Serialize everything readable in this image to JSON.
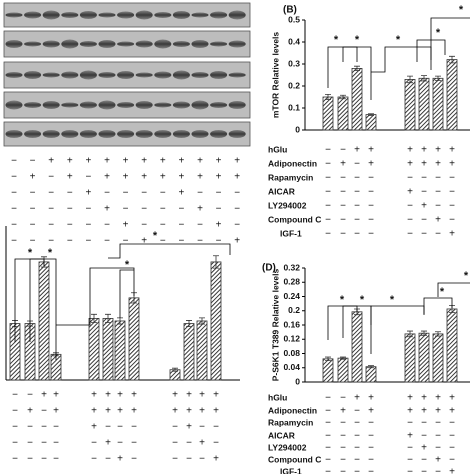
{
  "blot": {
    "signs": [
      [
        "−",
        "−",
        "+",
        "+",
        "+",
        "+",
        "+",
        "+",
        "+",
        "+",
        "+",
        "+",
        "+"
      ],
      [
        "−",
        "+",
        "−",
        "+",
        "−",
        "+",
        "+",
        "+",
        "+",
        "+",
        "+",
        "+",
        "+"
      ],
      [
        "−",
        "−",
        "−",
        "−",
        "+",
        "−",
        "−",
        "−",
        "−",
        "+",
        "−",
        "−",
        "−"
      ],
      [
        "−",
        "−",
        "−",
        "−",
        "−",
        "+",
        "−",
        "−",
        "−",
        "−",
        "+",
        "−",
        "−"
      ],
      [
        "−",
        "−",
        "−",
        "−",
        "−",
        "−",
        "+",
        "−",
        "−",
        "−",
        "−",
        "+",
        "−"
      ],
      [
        "−",
        "−",
        "−",
        "−",
        "−",
        "−",
        "−",
        "+",
        "−",
        "−",
        "−",
        "−",
        "+"
      ]
    ]
  },
  "chart_data": [
    {
      "type": "bar",
      "title": "(B)",
      "y_label": "mTOR Relative levels",
      "categories": [
        null,
        null,
        null,
        null,
        null,
        null,
        null,
        null,
        null
      ],
      "values": [
        0.15,
        0.15,
        0.28,
        0.07,
        null,
        0.23,
        0.235,
        0.235,
        0.32
      ],
      "errors": [
        0.012,
        0.008,
        0.01,
        0.004,
        null,
        0.015,
        0.012,
        0.01,
        0.015
      ],
      "color": "#333333",
      "ylim": [
        0,
        0.5
      ],
      "yticks": [
        0,
        0.1,
        0.2,
        0.3,
        0.4,
        0.5
      ],
      "annotations": [
        "*",
        "*",
        "*",
        "*",
        "*"
      ],
      "conditions": {
        "labels": [
          "hGlu",
          "Adiponectin",
          "Rapamycin",
          "AICAR",
          "LY294002",
          "Compound C",
          "IGF-1"
        ],
        "signs": [
          [
            "−",
            "−",
            "+",
            "+",
            null,
            "+",
            "+",
            "+",
            "+"
          ],
          [
            "−",
            "+",
            "−",
            "+",
            null,
            "+",
            "+",
            "+",
            "+"
          ],
          [
            "−",
            "−",
            "−",
            "−",
            null,
            "−",
            "−",
            "−",
            "−"
          ],
          [
            "−",
            "−",
            "−",
            "−",
            null,
            "+",
            "−",
            "−",
            "−"
          ],
          [
            "−",
            "−",
            "−",
            "−",
            null,
            "−",
            "+",
            "−",
            "−"
          ],
          [
            "−",
            "−",
            "−",
            "−",
            null,
            "−",
            "−",
            "+",
            "−"
          ],
          [
            "−",
            "−",
            "−",
            "−",
            null,
            "−",
            "−",
            "−",
            "+"
          ]
        ]
      }
    },
    {
      "type": "bar",
      "categories": [
        null,
        null,
        null,
        null,
        null,
        null,
        null,
        null,
        null,
        null,
        null,
        null,
        null,
        null
      ],
      "values": [
        0.11,
        0.11,
        0.23,
        0.05,
        null,
        0.12,
        0.12,
        0.115,
        0.16,
        null,
        0.02,
        0.11,
        0.115,
        0.23
      ],
      "errors": [
        0.006,
        0.005,
        0.01,
        0.003,
        null,
        0.008,
        0.008,
        0.006,
        0.01,
        null,
        0.003,
        0.006,
        0.006,
        0.012
      ],
      "color": "#333333",
      "ylim": [
        0,
        0.3
      ],
      "annotations": [
        "*",
        "*",
        "*",
        "*"
      ],
      "conditions": {
        "signs": [
          [
            "−",
            "−",
            "+",
            "+",
            null,
            "+",
            "+",
            "+",
            "+",
            null,
            "+",
            "+",
            "+",
            "+"
          ],
          [
            "−",
            "+",
            "−",
            "+",
            null,
            "+",
            "+",
            "+",
            "+",
            null,
            "+",
            "+",
            "+",
            "+"
          ],
          [
            "−",
            "−",
            "−",
            "−",
            null,
            "+",
            "−",
            "−",
            "−",
            null,
            "−",
            "+",
            "−",
            "−"
          ],
          [
            "−",
            "−",
            "−",
            "−",
            null,
            "−",
            "+",
            "−",
            "−",
            null,
            "−",
            "−",
            "+",
            "−"
          ],
          [
            "−",
            "−",
            "−",
            "−",
            null,
            "−",
            "−",
            "+",
            "−",
            null,
            "−",
            "−",
            "−",
            "+"
          ]
        ]
      }
    },
    {
      "type": "bar",
      "title": "(D)",
      "y_label": "P-S6K1 T389 Relative levels",
      "categories": [
        null,
        null,
        null,
        null,
        null,
        null,
        null,
        null,
        null
      ],
      "values": [
        0.065,
        0.067,
        0.197,
        0.043,
        null,
        0.135,
        0.137,
        0.135,
        0.205
      ],
      "errors": [
        0.005,
        0.003,
        0.008,
        0.003,
        null,
        0.008,
        0.006,
        0.006,
        0.01
      ],
      "color": "#333333",
      "ylim": [
        0,
        0.32
      ],
      "yticks": [
        0,
        0.04,
        0.08,
        0.12,
        0.16,
        0.2,
        0.24,
        0.28,
        0.32
      ],
      "annotations": [
        "*",
        "*",
        "*",
        "*",
        "*"
      ],
      "conditions": {
        "labels": [
          "hGlu",
          "Adiponectin",
          "Rapamycin",
          "AICAR",
          "LY294002",
          "Compound C",
          "IGF-1"
        ],
        "signs": [
          [
            "−",
            "−",
            "+",
            "+",
            null,
            "+",
            "+",
            "+",
            "+"
          ],
          [
            "−",
            "+",
            "−",
            "+",
            null,
            "+",
            "+",
            "+",
            "+"
          ],
          [
            "−",
            "−",
            "−",
            "−",
            null,
            "−",
            "−",
            "−",
            "−"
          ],
          [
            "−",
            "−",
            "−",
            "−",
            null,
            "+",
            "−",
            "−",
            "−"
          ],
          [
            "−",
            "−",
            "−",
            "−",
            null,
            "−",
            "+",
            "−",
            "−"
          ],
          [
            "−",
            "−",
            "−",
            "−",
            null,
            "−",
            "−",
            "+",
            "−"
          ],
          [
            "−",
            "−",
            "−",
            "−",
            null,
            "−",
            "−",
            "−",
            "+"
          ]
        ]
      }
    }
  ]
}
